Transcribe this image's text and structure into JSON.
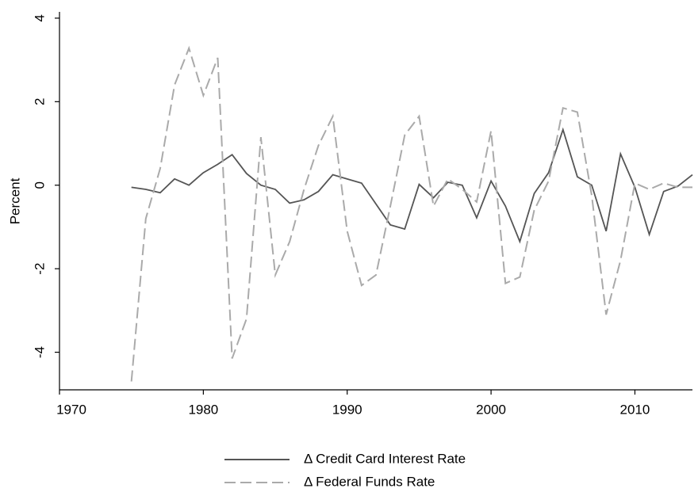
{
  "chart_data": {
    "type": "line",
    "y_label": "Percent",
    "x": [
      1975,
      1976,
      1977,
      1978,
      1979,
      1980,
      1981,
      1982,
      1983,
      1984,
      1985,
      1986,
      1987,
      1988,
      1989,
      1990,
      1991,
      1992,
      1993,
      1994,
      1995,
      1996,
      1997,
      1998,
      1999,
      2000,
      2001,
      2002,
      2003,
      2004,
      2005,
      2006,
      2007,
      2008,
      2009,
      2010,
      2011,
      2012,
      2013,
      2014
    ],
    "series": [
      {
        "name": "Δ Credit Card Interest Rate",
        "color": "#555555",
        "dash": false,
        "values": [
          -0.05,
          -0.1,
          -0.18,
          0.15,
          0.0,
          0.3,
          0.5,
          0.73,
          0.28,
          0.0,
          -0.1,
          -0.43,
          -0.35,
          -0.15,
          0.25,
          0.15,
          0.05,
          -0.45,
          -0.95,
          -1.05,
          0.02,
          -0.3,
          0.07,
          0.0,
          -0.78,
          0.1,
          -0.5,
          -1.35,
          -0.2,
          0.3,
          1.33,
          0.2,
          0.0,
          -1.1,
          0.75,
          -0.05,
          -1.18,
          -0.15,
          -0.02,
          0.25
        ]
      },
      {
        "name": "Δ Federal Funds Rate",
        "color": "#aaaaaa",
        "dash": true,
        "values": [
          -4.7,
          -0.8,
          0.4,
          2.4,
          3.28,
          2.15,
          3.05,
          -4.15,
          -3.2,
          1.15,
          -2.15,
          -1.35,
          -0.1,
          0.95,
          1.65,
          -1.1,
          -2.4,
          -2.15,
          -0.5,
          1.2,
          1.65,
          -0.5,
          0.15,
          -0.1,
          -0.4,
          1.3,
          -2.35,
          -2.2,
          -0.6,
          0.1,
          1.85,
          1.75,
          -0.25,
          -3.1,
          -1.8,
          0.05,
          -0.1,
          0.05,
          -0.05,
          -0.05
        ]
      }
    ],
    "xlim": [
      1970,
      2014
    ],
    "xticks": [
      1970,
      1980,
      1990,
      2000,
      2010
    ],
    "ylim": [
      -4.9,
      4.15
    ],
    "yticks": [
      -4,
      -2,
      0,
      2,
      4
    ]
  }
}
